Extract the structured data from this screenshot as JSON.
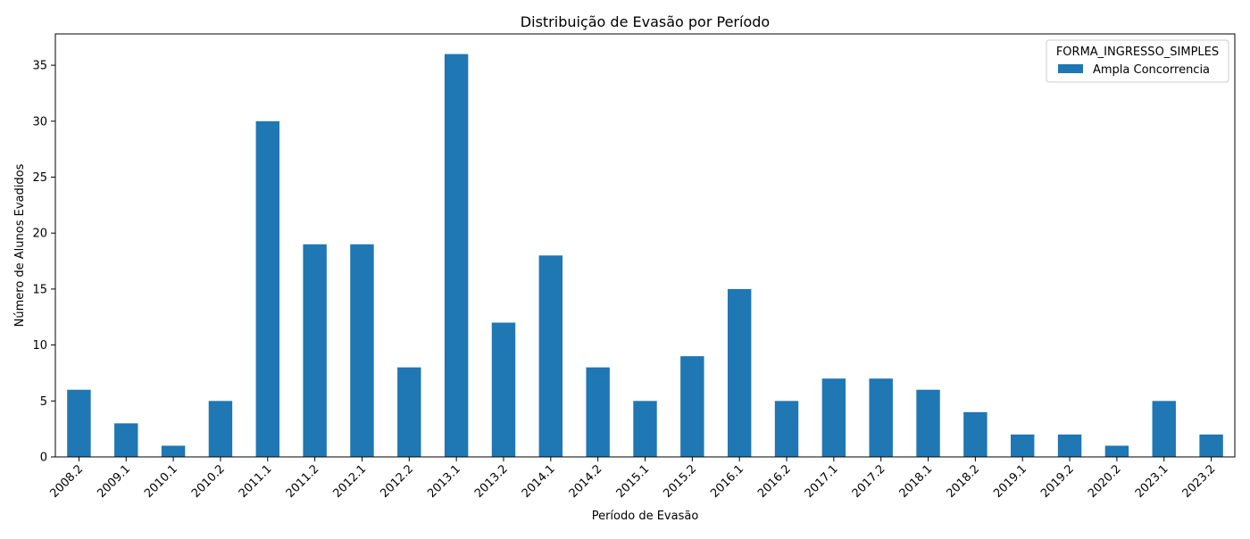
{
  "chart_data": {
    "type": "bar",
    "title": "Distribuição de Evasão por Período",
    "xlabel": "Período de Evasão",
    "ylabel": "Número de Alunos Evadidos",
    "categories": [
      "2008.2",
      "2009.1",
      "2010.1",
      "2010.2",
      "2011.1",
      "2011.2",
      "2012.1",
      "2012.2",
      "2013.1",
      "2013.2",
      "2014.1",
      "2014.2",
      "2015.1",
      "2015.2",
      "2016.1",
      "2016.2",
      "2017.1",
      "2017.2",
      "2018.1",
      "2018.2",
      "2019.1",
      "2019.2",
      "2020.2",
      "2023.1",
      "2023.2"
    ],
    "series": [
      {
        "name": "Ampla Concorrencia",
        "color": "#1f77b4",
        "values": [
          6,
          3,
          1,
          5,
          30,
          19,
          19,
          8,
          36,
          12,
          18,
          8,
          5,
          9,
          15,
          5,
          7,
          7,
          6,
          4,
          2,
          2,
          1,
          5,
          2
        ]
      }
    ],
    "ylim": [
      0,
      37.8
    ],
    "yticks": [
      0,
      5,
      10,
      15,
      20,
      25,
      30,
      35
    ],
    "grid": false,
    "legend": {
      "title": "FORMA_INGRESSO_SIMPLES",
      "placement": "top-right"
    }
  }
}
